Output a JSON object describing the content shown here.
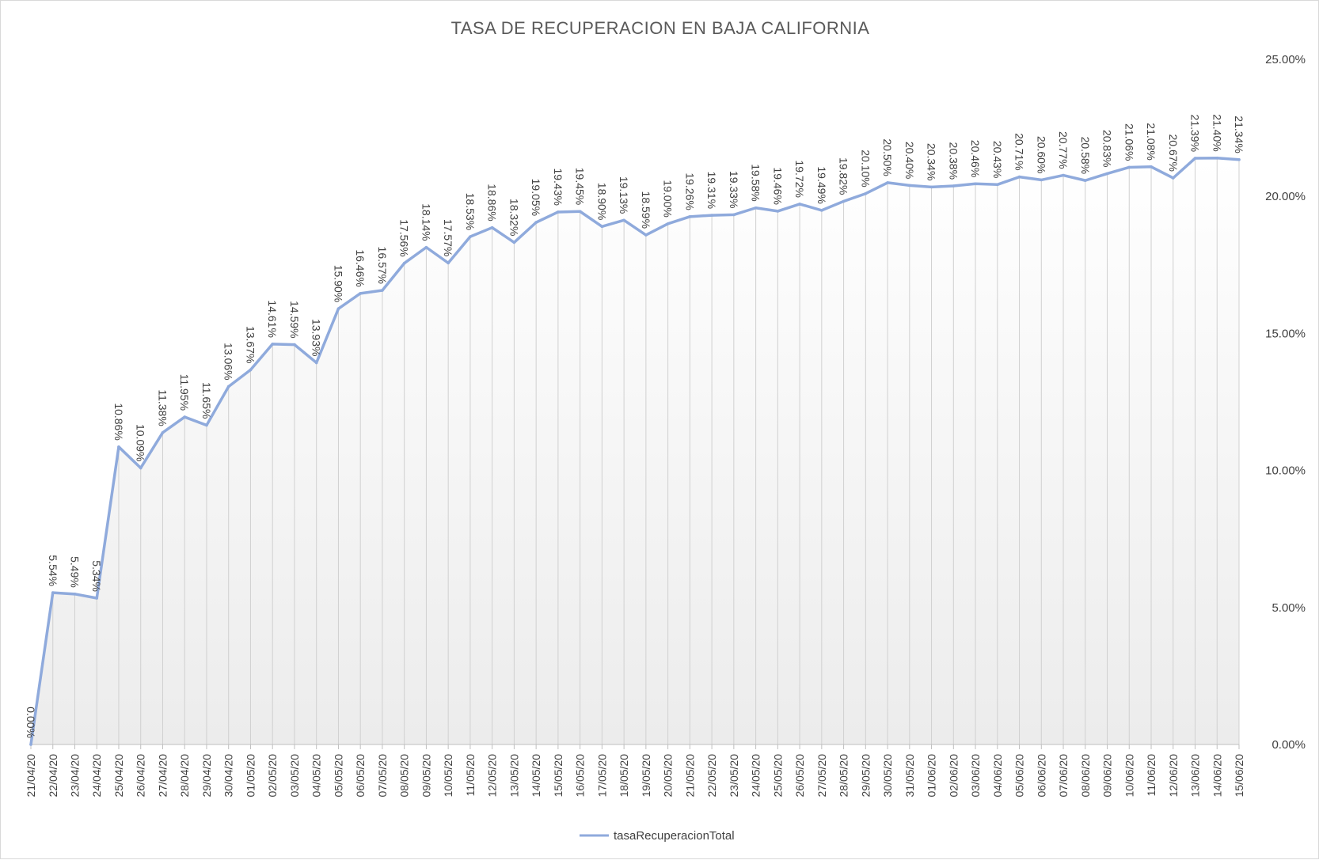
{
  "chart_data": {
    "type": "line",
    "title": "TASA DE RECUPERACION  EN BAJA CALIFORNIA",
    "xlabel": "",
    "ylabel": "",
    "ylim": [
      0,
      25
    ],
    "yaxis_side": "right",
    "yticks": [
      "0.00%",
      "5.00%",
      "10.00%",
      "15.00%",
      "20.00%",
      "25.00%"
    ],
    "ytick_values": [
      0,
      5,
      10,
      15,
      20,
      25
    ],
    "grid": "vertical drop lines",
    "legend_position": "bottom",
    "categories": [
      "21/04/20",
      "22/04/20",
      "23/04/20",
      "24/04/20",
      "25/04/20",
      "26/04/20",
      "27/04/20",
      "28/04/20",
      "29/04/20",
      "30/04/20",
      "01/05/20",
      "02/05/20",
      "03/05/20",
      "04/05/20",
      "05/05/20",
      "06/05/20",
      "07/05/20",
      "08/05/20",
      "09/05/20",
      "10/05/20",
      "11/05/20",
      "12/05/20",
      "13/05/20",
      "14/05/20",
      "15/05/20",
      "16/05/20",
      "17/05/20",
      "18/05/20",
      "19/05/20",
      "20/05/20",
      "21/05/20",
      "22/05/20",
      "23/05/20",
      "24/05/20",
      "25/05/20",
      "26/05/20",
      "27/05/20",
      "28/05/20",
      "29/05/20",
      "30/05/20",
      "31/05/20",
      "01/06/20",
      "02/06/20",
      "03/06/20",
      "04/06/20",
      "05/06/20",
      "06/06/20",
      "07/06/20",
      "08/06/20",
      "09/06/20",
      "10/06/20",
      "11/06/20",
      "12/06/20",
      "13/06/20",
      "14/06/20",
      "15/06/20"
    ],
    "series": [
      {
        "name": "tasaRecuperacionTotal",
        "color": "#8faadc",
        "values": [
          0.0,
          5.54,
          5.49,
          5.34,
          10.86,
          10.09,
          11.38,
          11.95,
          11.65,
          13.06,
          13.67,
          14.61,
          14.59,
          13.93,
          15.9,
          16.46,
          16.57,
          17.56,
          18.14,
          17.57,
          18.53,
          18.86,
          18.32,
          19.05,
          19.43,
          19.45,
          18.9,
          19.13,
          18.59,
          19.0,
          19.26,
          19.31,
          19.33,
          19.58,
          19.46,
          19.72,
          19.49,
          19.82,
          20.1,
          20.5,
          20.4,
          20.34,
          20.38,
          20.46,
          20.43,
          20.71,
          20.6,
          20.77,
          20.58,
          20.83,
          21.06,
          21.08,
          20.67,
          21.39,
          21.4,
          21.34
        ],
        "labels": [
          "0.00%",
          "5.54%",
          "5.49%",
          "5.34%",
          "10.86%",
          "10.09%",
          "11.38%",
          "11.95%",
          "11.65%",
          "13.06%",
          "13.67%",
          "14.61%",
          "14.59%",
          "13.93%",
          "15.90%",
          "16.46%",
          "16.57%",
          "17.56%",
          "18.14%",
          "17.57%",
          "18.53%",
          "18.86%",
          "18.32%",
          "19.05%",
          "19.43%",
          "19.45%",
          "18.90%",
          "19.13%",
          "18.59%",
          "19.00%",
          "19.26%",
          "19.31%",
          "19.33%",
          "19.58%",
          "19.46%",
          "19.72%",
          "19.49%",
          "19.82%",
          "20.10%",
          "20.50%",
          "20.40%",
          "20.34%",
          "20.38%",
          "20.46%",
          "20.43%",
          "20.71%",
          "20.60%",
          "20.77%",
          "20.58%",
          "20.83%",
          "21.06%",
          "21.08%",
          "20.67%",
          "21.39%",
          "21.40%",
          "21.34%"
        ]
      }
    ]
  }
}
